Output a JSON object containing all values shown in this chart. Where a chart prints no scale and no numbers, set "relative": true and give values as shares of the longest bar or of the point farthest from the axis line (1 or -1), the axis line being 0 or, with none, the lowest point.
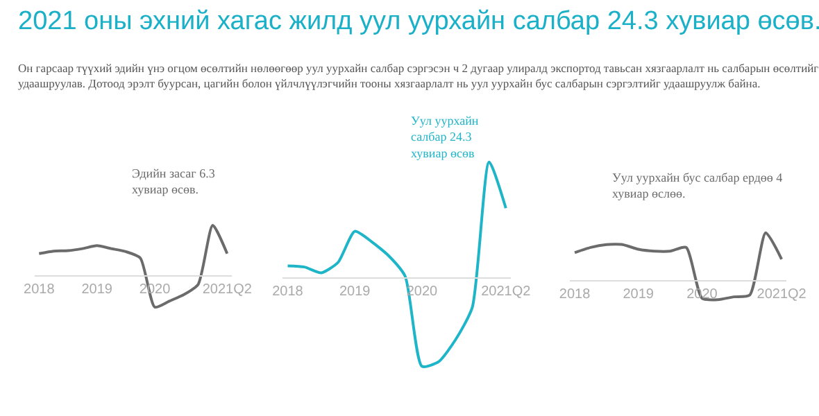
{
  "chart_data": [
    {
      "type": "line",
      "relative": true,
      "title": "2021 оны эхний хагас жилд уул уурхайн салбар 24.3 хувиар өсөв.",
      "subtitle": "Он гарсаар түүхий эдийн үнэ огцом өсөлтийн нөлөөгөөр уул уурхайн салбар сэргэсэн ч 2 дугаар улиралд экспортод тавьсан хязгаарлалт нь салбарын өсөлтийг удаашруулав. Дотоод эрэлт буурсан, цагийн болон үйлчлүүлэгчийн тооны хязгаарлалт нь уул уурхайн бус салбарын сэргэлтийг удаашруулж байна.",
      "annotations": [
        "Эдийн засаг 6.3\nхувиар өсөв."
      ],
      "categories": [
        "2018",
        null,
        null,
        null,
        "2019",
        null,
        null,
        null,
        "2020",
        null,
        null,
        null,
        null,
        "2021Q2"
      ],
      "series": [
        {
          "color": "#6b6b6b",
          "values": [
            0.43,
            0.48,
            0.49,
            0.53,
            0.59,
            0.53,
            0.47,
            0.34,
            -0.65,
            -0.53,
            -0.4,
            -0.19,
            1.0,
            0.43
          ]
        }
      ]
    },
    {
      "type": "line",
      "relative": true,
      "annotations": [
        "Уул уурхайн\nсалбар 24.3\nхувиар өсөв"
      ],
      "categories": [
        "2018",
        null,
        null,
        null,
        "2019",
        null,
        null,
        null,
        "2020",
        null,
        null,
        null,
        null,
        "2021Q2"
      ],
      "series": [
        {
          "color": "#1fb5c8",
          "values": [
            0.1,
            0.09,
            0.04,
            0.13,
            0.4,
            0.31,
            0.19,
            0.01,
            -0.77,
            -0.73,
            -0.54,
            -0.26,
            1.0,
            0.6
          ]
        }
      ]
    },
    {
      "type": "line",
      "relative": true,
      "annotations": [
        "Уул уурхайн бус салбар ердөө 4\nхувиар өслөө."
      ],
      "categories": [
        "2018",
        null,
        null,
        null,
        "2019",
        null,
        null,
        null,
        "2020",
        null,
        null,
        null,
        null,
        "2021Q2"
      ],
      "series": [
        {
          "color": "#6b6b6b",
          "values": [
            0.58,
            0.69,
            0.75,
            0.75,
            0.65,
            0.61,
            0.61,
            0.69,
            -0.39,
            -0.42,
            -0.36,
            -0.32,
            1.0,
            0.44
          ]
        }
      ]
    }
  ]
}
